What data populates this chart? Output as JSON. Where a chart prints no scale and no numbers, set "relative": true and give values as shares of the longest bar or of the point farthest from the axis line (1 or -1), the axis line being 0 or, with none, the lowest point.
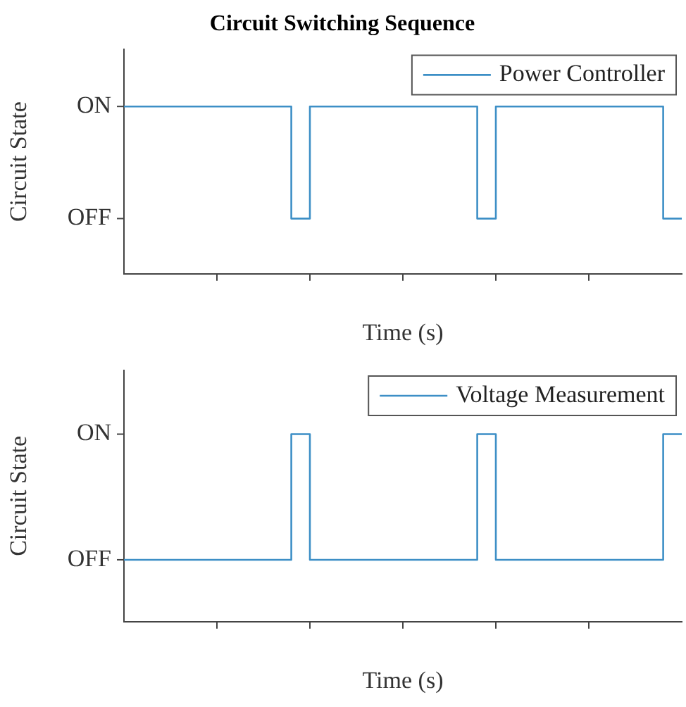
{
  "chart_data": [
    {
      "type": "step",
      "title": "Circuit Switching Sequence",
      "xlabel": "Time (s)",
      "ylabel": "Circuit State",
      "relative": true,
      "categories": [
        null,
        null,
        null,
        null,
        null,
        null,
        null,
        null,
        null,
        null,
        null,
        null,
        null,
        null,
        null,
        null,
        null,
        null,
        null,
        null,
        null,
        null,
        null,
        null,
        null,
        null,
        null,
        null,
        null,
        null,
        null
      ],
      "annotations": [
        "ON",
        "OFF"
      ],
      "grid": false,
      "legend": "top right",
      "series": [
        {
          "name": "Power Controller",
          "color": "#3d8fc6",
          "values": [
            1,
            1,
            1,
            1,
            1,
            1,
            1,
            1,
            1,
            0.33,
            1,
            1,
            1,
            1,
            1,
            1,
            1,
            1,
            1,
            0.33,
            1,
            1,
            1,
            1,
            1,
            1,
            1,
            1,
            1,
            0.33,
            0.33
          ]
        }
      ]
    },
    {
      "type": "step",
      "xlabel": "Time (s)",
      "ylabel": "Circuit State",
      "relative": true,
      "categories": [
        null,
        null,
        null,
        null,
        null,
        null,
        null,
        null,
        null,
        null,
        null,
        null,
        null,
        null,
        null,
        null,
        null,
        null,
        null,
        null,
        null,
        null,
        null,
        null,
        null,
        null,
        null,
        null,
        null,
        null,
        null
      ],
      "annotations": [
        "ON",
        "OFF"
      ],
      "grid": false,
      "legend": "top right",
      "series": [
        {
          "name": "Voltage Measurement",
          "color": "#3d8fc6",
          "values": [
            0.33,
            0.33,
            0.33,
            0.33,
            0.33,
            0.33,
            0.33,
            0.33,
            0.33,
            1,
            0.33,
            0.33,
            0.33,
            0.33,
            0.33,
            0.33,
            0.33,
            0.33,
            0.33,
            1,
            0.33,
            0.33,
            0.33,
            0.33,
            0.33,
            0.33,
            0.33,
            0.33,
            0.33,
            1,
            1
          ]
        }
      ]
    }
  ]
}
